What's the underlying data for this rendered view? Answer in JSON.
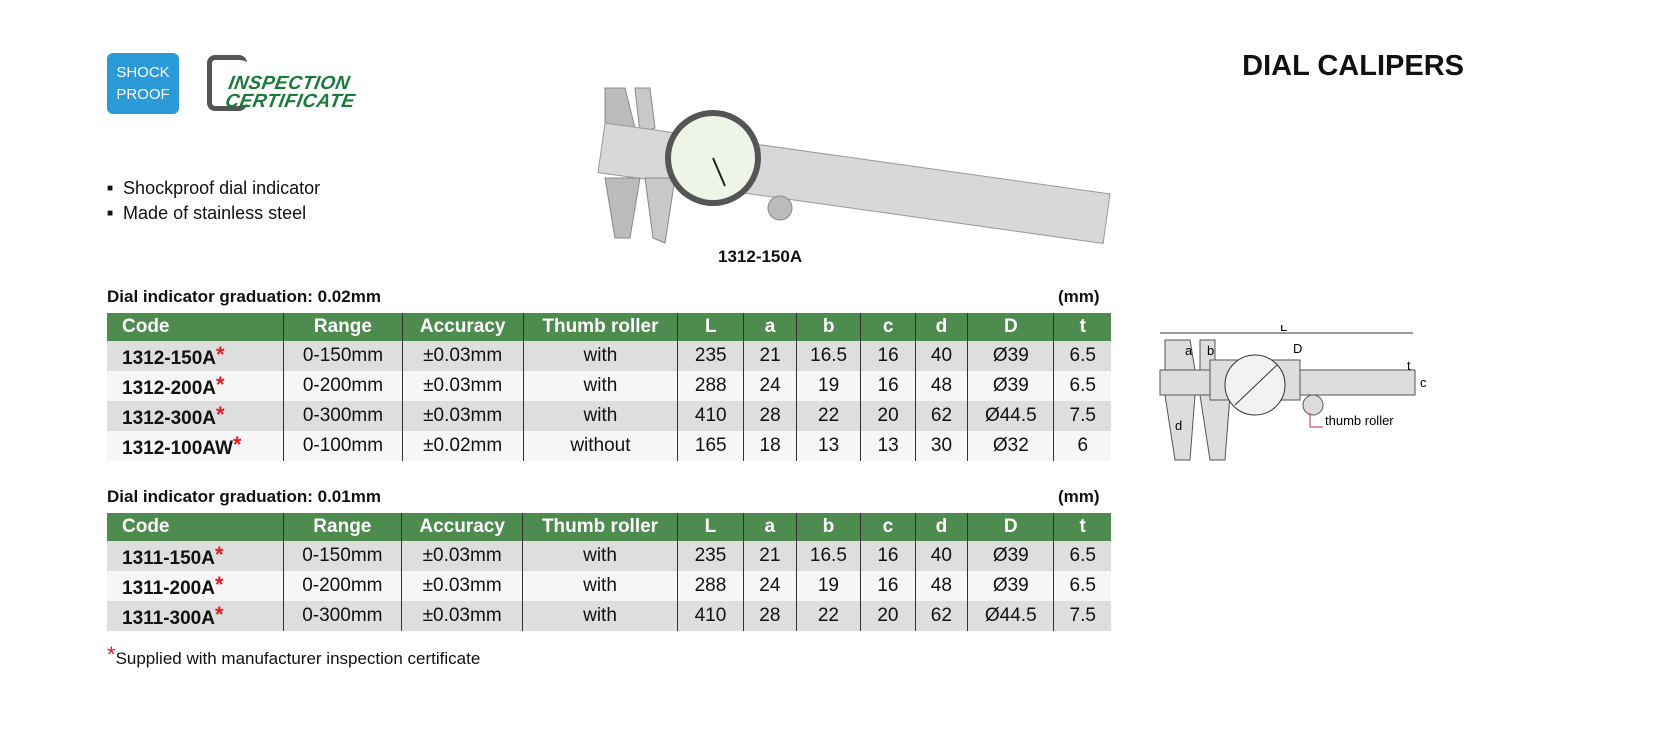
{
  "header": {
    "badge_shockproof": "SHOCK PROOF",
    "badge_certificate": "INSPECTION CERTIFICATE",
    "title": "DIAL CALIPERS"
  },
  "features": [
    "Shockproof dial indicator",
    "Made of stainless steel"
  ],
  "product_image": {
    "caption": "1312-150A"
  },
  "columns": [
    "Code",
    "Range",
    "Accuracy",
    "Thumb roller",
    "L",
    "a",
    "b",
    "c",
    "d",
    "D",
    "t"
  ],
  "tables": [
    {
      "graduation": "Dial indicator graduation: 0.02mm",
      "unit": "(mm)",
      "rows": [
        [
          "1312-150A",
          "0-150mm",
          "±0.03mm",
          "with",
          "235",
          "21",
          "16.5",
          "16",
          "40",
          "Ø39",
          "6.5"
        ],
        [
          "1312-200A",
          "0-200mm",
          "±0.03mm",
          "with",
          "288",
          "24",
          "19",
          "16",
          "48",
          "Ø39",
          "6.5"
        ],
        [
          "1312-300A",
          "0-300mm",
          "±0.03mm",
          "with",
          "410",
          "28",
          "22",
          "20",
          "62",
          "Ø44.5",
          "7.5"
        ],
        [
          "1312-100AW",
          "0-100mm",
          "±0.02mm",
          "without",
          "165",
          "18",
          "13",
          "13",
          "30",
          "Ø32",
          "6"
        ]
      ]
    },
    {
      "graduation": "Dial indicator graduation: 0.01mm",
      "unit": "(mm)",
      "rows": [
        [
          "1311-150A",
          "0-150mm",
          "±0.03mm",
          "with",
          "235",
          "21",
          "16.5",
          "16",
          "40",
          "Ø39",
          "6.5"
        ],
        [
          "1311-200A",
          "0-200mm",
          "±0.03mm",
          "with",
          "288",
          "24",
          "19",
          "16",
          "48",
          "Ø39",
          "6.5"
        ],
        [
          "1311-300A",
          "0-300mm",
          "±0.03mm",
          "with",
          "410",
          "28",
          "22",
          "20",
          "62",
          "Ø44.5",
          "7.5"
        ]
      ]
    }
  ],
  "diagram": {
    "labels": {
      "L": "L",
      "a": "a",
      "b": "b",
      "c": "c",
      "d": "d",
      "D": "D",
      "t": "t"
    },
    "thumb_roller": "thumb roller"
  },
  "footnote": {
    "star": "*",
    "text": "Supplied with manufacturer inspection certificate"
  },
  "colors": {
    "header_green": "#4d8b4f",
    "star_red": "#e02020",
    "badge_blue": "#2a9ad8"
  }
}
